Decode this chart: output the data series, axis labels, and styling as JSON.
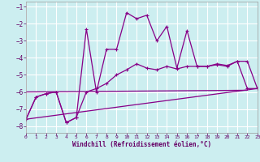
{
  "xlabel": "Windchill (Refroidissement éolien,°C)",
  "background_color": "#cceef0",
  "grid_color": "#ffffff",
  "line_color": "#880088",
  "xlim": [
    0,
    23
  ],
  "ylim": [
    -8.4,
    -0.7
  ],
  "yticks": [
    -8,
    -7,
    -6,
    -5,
    -4,
    -3,
    -2,
    -1
  ],
  "xticks": [
    0,
    1,
    2,
    3,
    4,
    5,
    6,
    7,
    8,
    9,
    10,
    11,
    12,
    13,
    14,
    15,
    16,
    17,
    18,
    19,
    20,
    21,
    22,
    23
  ],
  "series_jagged": {
    "x": [
      0,
      1,
      2,
      3,
      4,
      5,
      6,
      7,
      8,
      9,
      10,
      11,
      12,
      13,
      14,
      15,
      16,
      17,
      18,
      19,
      20,
      21,
      22,
      23
    ],
    "y": [
      -7.6,
      -6.3,
      -6.1,
      -6.0,
      -7.8,
      -7.5,
      -2.3,
      -6.0,
      -3.5,
      -3.5,
      -1.35,
      -1.7,
      -1.5,
      -3.0,
      -2.15,
      -4.6,
      -2.4,
      -4.5,
      -4.5,
      -4.35,
      -4.45,
      -4.2,
      -5.8,
      -5.8
    ]
  },
  "series_smooth": {
    "x": [
      0,
      1,
      2,
      3,
      4,
      5,
      6,
      7,
      8,
      9,
      10,
      11,
      12,
      13,
      14,
      15,
      16,
      17,
      18,
      19,
      20,
      21,
      22,
      23
    ],
    "y": [
      -7.6,
      -6.3,
      -6.1,
      -6.0,
      -7.8,
      -7.5,
      -6.0,
      -5.8,
      -5.5,
      -5.0,
      -4.7,
      -4.35,
      -4.6,
      -4.7,
      -4.5,
      -4.65,
      -4.5,
      -4.5,
      -4.5,
      -4.4,
      -4.5,
      -4.2,
      -4.2,
      -5.8
    ]
  },
  "line_flat": {
    "x": [
      0,
      22
    ],
    "y": [
      -6.0,
      -5.9
    ]
  },
  "line_diag": {
    "x": [
      0,
      23
    ],
    "y": [
      -7.6,
      -5.8
    ]
  }
}
